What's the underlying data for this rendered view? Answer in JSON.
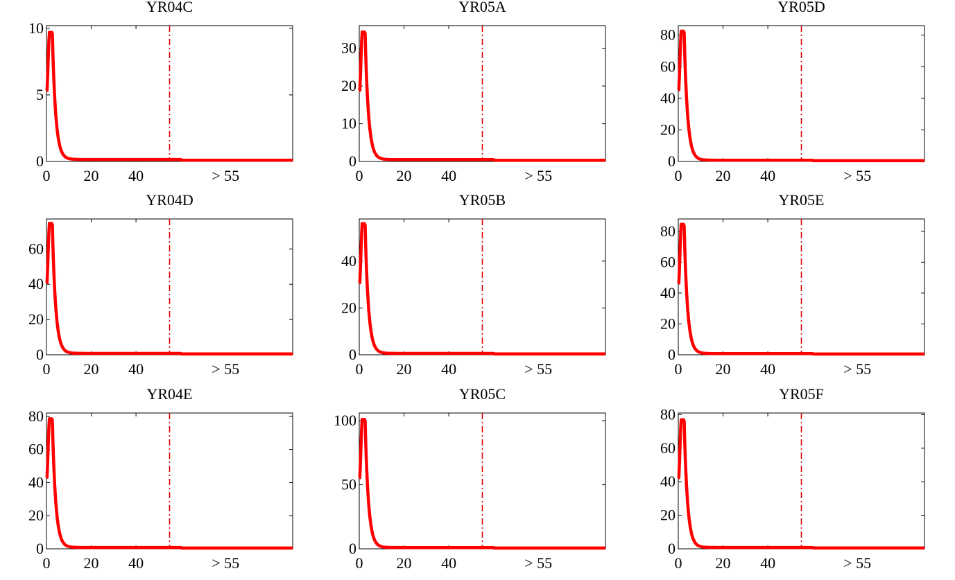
{
  "colors": {
    "curve": "#ff0000",
    "threshold": "#e00000",
    "axes": "#000000",
    "background": "#ffffff"
  },
  "chart_data": [
    {
      "type": "line",
      "title": "YR04C",
      "xlim": [
        0,
        110
      ],
      "ylim": [
        0,
        10.2
      ],
      "xticks": [
        0,
        20,
        40
      ],
      "xtick_extra_label": "> 55",
      "yticks": [
        0,
        5,
        10
      ],
      "threshold_x": 55,
      "peak": 9.7,
      "tail": 0.15,
      "xlabel": "",
      "ylabel": ""
    },
    {
      "type": "line",
      "title": "YR05A",
      "xlim": [
        0,
        110
      ],
      "ylim": [
        0,
        36
      ],
      "xticks": [
        0,
        20,
        40
      ],
      "xtick_extra_label": "> 55",
      "yticks": [
        0,
        10,
        20,
        30
      ],
      "threshold_x": 55,
      "peak": 34.3,
      "tail": 0.5,
      "xlabel": "",
      "ylabel": ""
    },
    {
      "type": "line",
      "title": "YR05D",
      "xlim": [
        0,
        110
      ],
      "ylim": [
        0,
        86
      ],
      "xticks": [
        0,
        20,
        40
      ],
      "xtick_extra_label": "> 55",
      "yticks": [
        0,
        20,
        40,
        60,
        80
      ],
      "threshold_x": 55,
      "peak": 82.5,
      "tail": 0.8,
      "xlabel": "",
      "ylabel": ""
    },
    {
      "type": "line",
      "title": "YR04D",
      "xlim": [
        0,
        110
      ],
      "ylim": [
        0,
        77
      ],
      "xticks": [
        0,
        20,
        40
      ],
      "xtick_extra_label": "> 55",
      "yticks": [
        0,
        20,
        40,
        60
      ],
      "threshold_x": 55,
      "peak": 74.5,
      "tail": 0.8,
      "xlabel": "",
      "ylabel": ""
    },
    {
      "type": "line",
      "title": "YR05B",
      "xlim": [
        0,
        110
      ],
      "ylim": [
        0,
        58
      ],
      "xticks": [
        0,
        20,
        40
      ],
      "xtick_extra_label": "> 55",
      "yticks": [
        0,
        20,
        40
      ],
      "threshold_x": 55,
      "peak": 56,
      "tail": 0.6,
      "xlabel": "",
      "ylabel": ""
    },
    {
      "type": "line",
      "title": "YR05E",
      "xlim": [
        0,
        110
      ],
      "ylim": [
        0,
        88
      ],
      "xticks": [
        0,
        20,
        40
      ],
      "xtick_extra_label": "> 55",
      "yticks": [
        0,
        20,
        40,
        60,
        80
      ],
      "threshold_x": 55,
      "peak": 84.5,
      "tail": 0.8,
      "xlabel": "",
      "ylabel": ""
    },
    {
      "type": "line",
      "title": "YR04E",
      "xlim": [
        0,
        110
      ],
      "ylim": [
        0,
        82
      ],
      "xticks": [
        0,
        20,
        40
      ],
      "xtick_extra_label": "> 55",
      "yticks": [
        0,
        20,
        40,
        60,
        80
      ],
      "threshold_x": 55,
      "peak": 78.5,
      "tail": 0.8,
      "xlabel": "",
      "ylabel": ""
    },
    {
      "type": "line",
      "title": "YR05C",
      "xlim": [
        0,
        110
      ],
      "ylim": [
        0,
        106
      ],
      "xticks": [
        0,
        20,
        40
      ],
      "xtick_extra_label": "> 55",
      "yticks": [
        0,
        50,
        100
      ],
      "threshold_x": 55,
      "peak": 101,
      "tail": 1.0,
      "xlabel": "",
      "ylabel": ""
    },
    {
      "type": "line",
      "title": "YR05F",
      "xlim": [
        0,
        110
      ],
      "ylim": [
        0,
        81
      ],
      "xticks": [
        0,
        20,
        40
      ],
      "xtick_extra_label": "> 55",
      "yticks": [
        0,
        20,
        40,
        60,
        80
      ],
      "threshold_x": 55,
      "peak": 77,
      "tail": 0.8,
      "xlabel": "",
      "ylabel": ""
    }
  ]
}
